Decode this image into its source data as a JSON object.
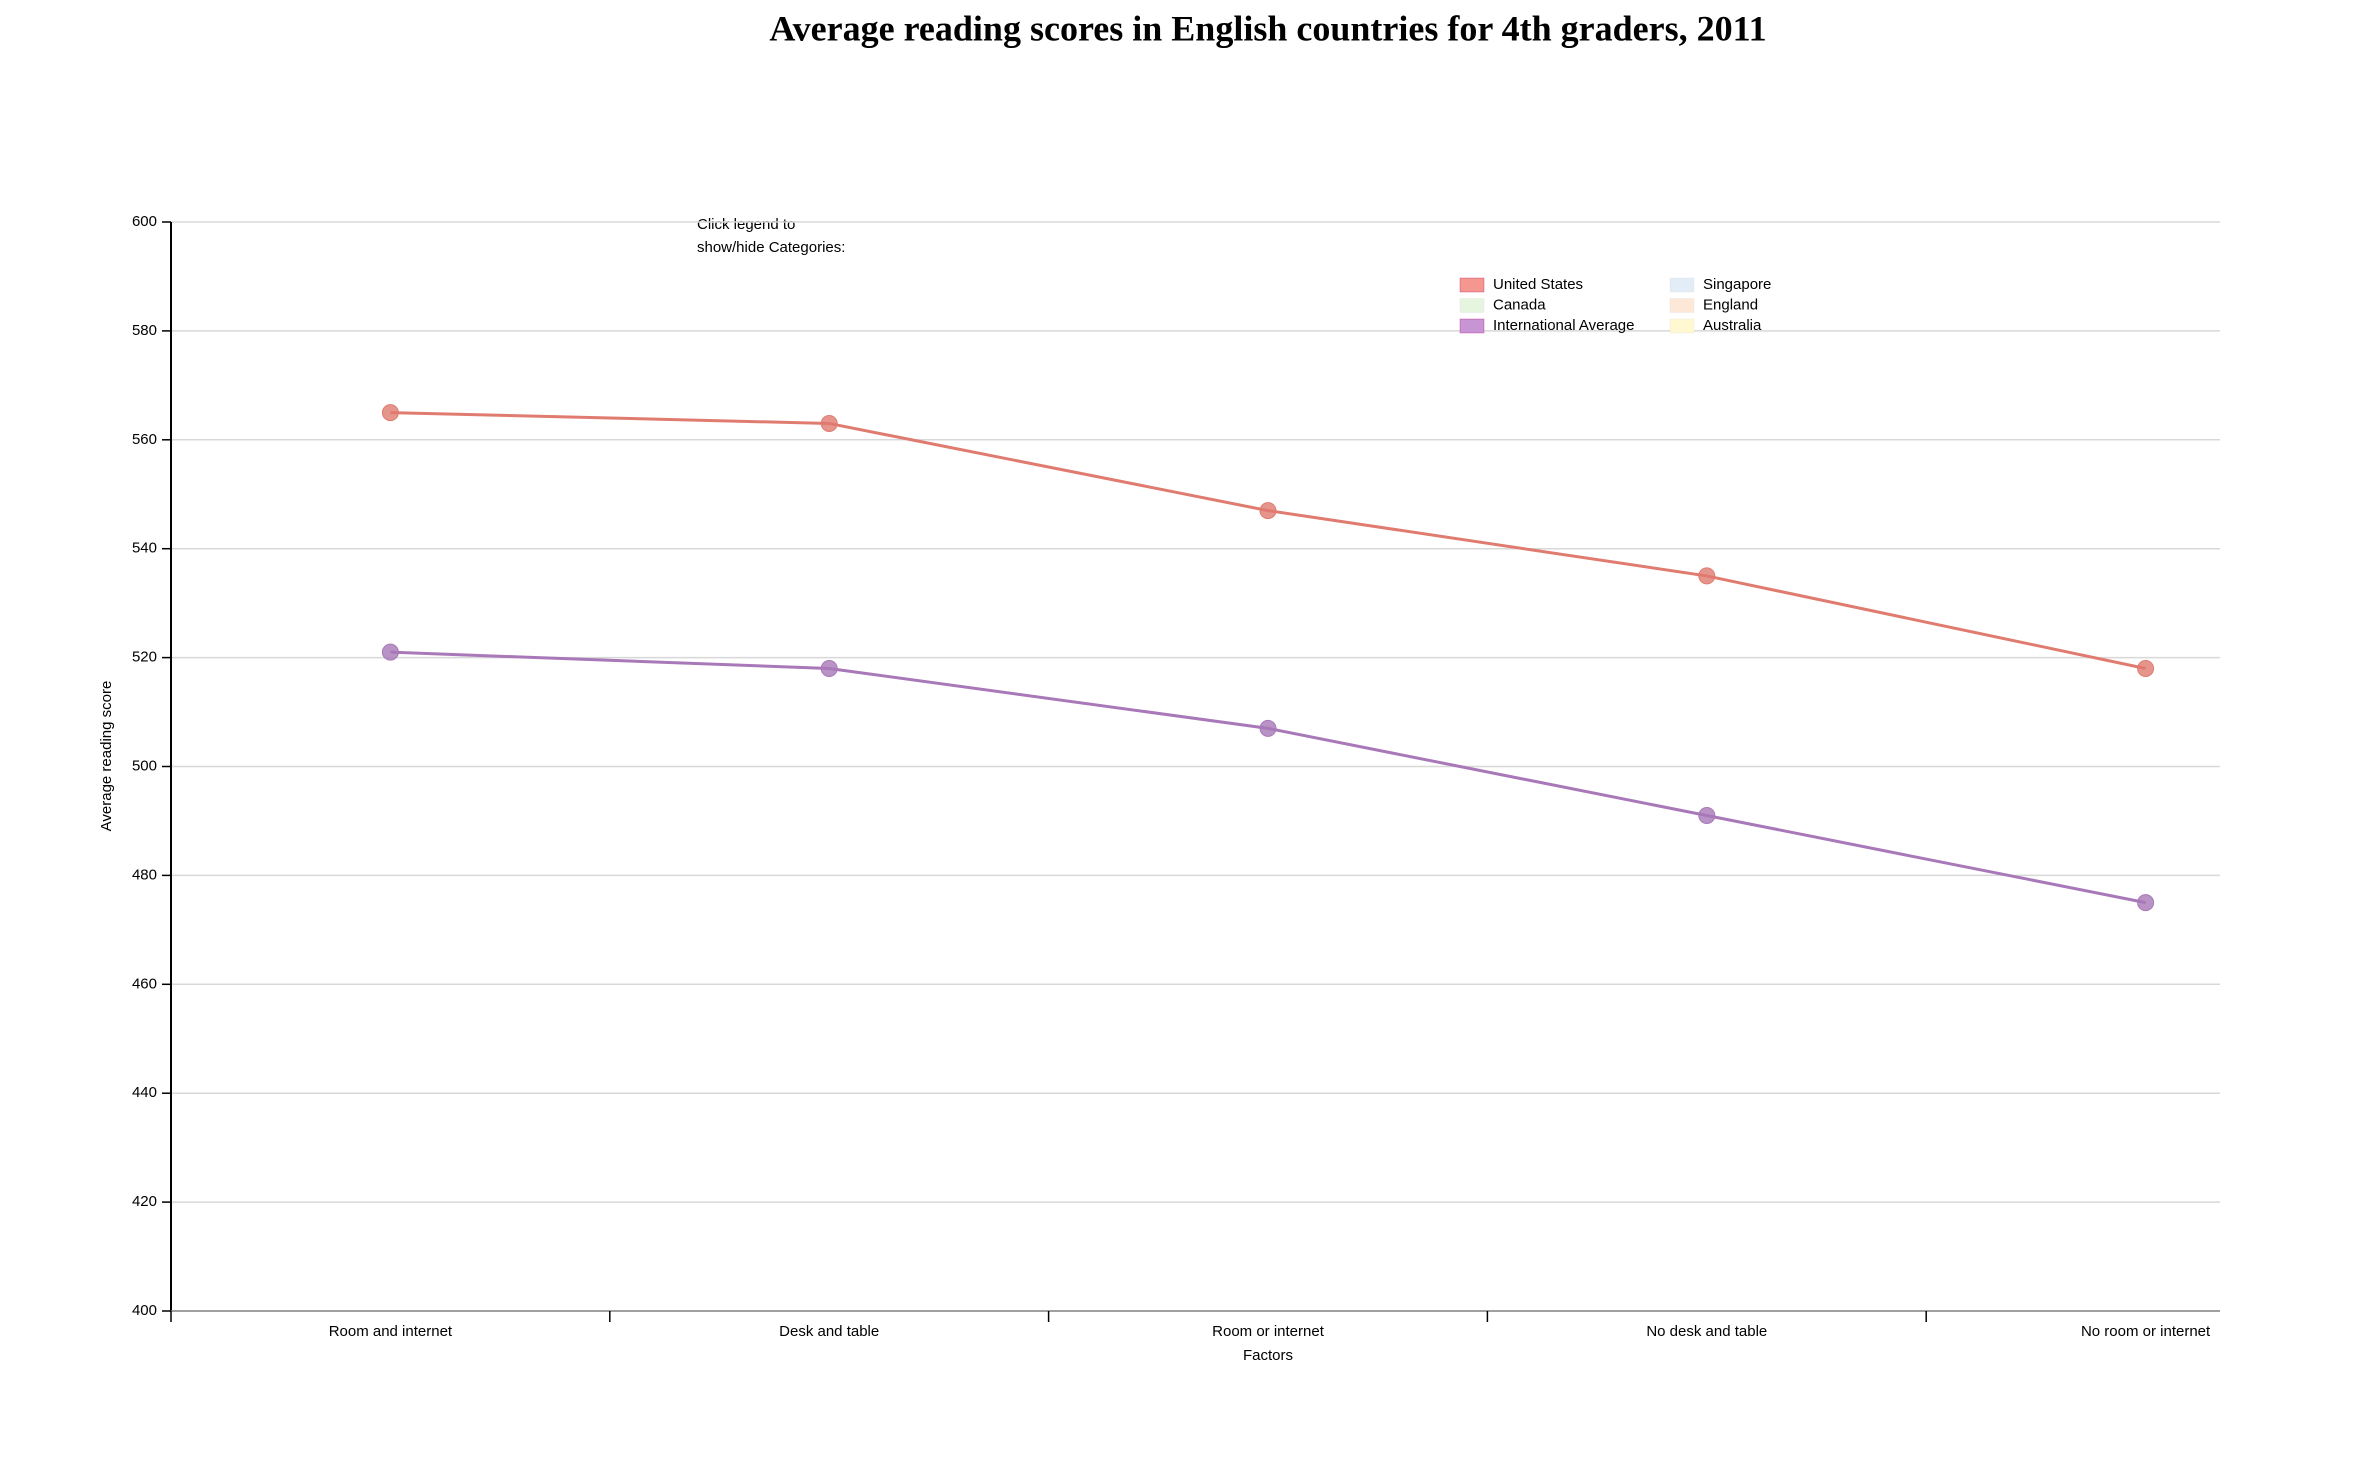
{
  "chart_data": {
    "type": "line",
    "title": "Average reading scores in English countries for 4th graders, 2011",
    "x_label": "Factors",
    "y_label": "Average reading score",
    "legend_note": [
      "Click legend to",
      "show/hide Categories:"
    ],
    "categories": [
      "Room and internet",
      "Desk and table",
      "Room or internet",
      "No desk and table",
      "No room or internet"
    ],
    "series": [
      {
        "name": "United States",
        "color": "#e07b70",
        "values": [
          565,
          563,
          547,
          535,
          518
        ]
      },
      {
        "name": "International Average",
        "color": "#a878b8",
        "values": [
          521,
          518,
          507,
          491,
          475
        ]
      }
    ],
    "legend": [
      {
        "name": "United States",
        "color": "#f4978e"
      },
      {
        "name": "Singapore",
        "color": "#e3edf8"
      },
      {
        "name": "Canada",
        "color": "#e6f5e0"
      },
      {
        "name": "England",
        "color": "#fde8d8"
      },
      {
        "name": "International Average",
        "color": "#c795d4"
      },
      {
        "name": "Australia",
        "color": "#fff8d0"
      }
    ],
    "ylim": [
      400,
      600
    ],
    "yticks": [
      400,
      420,
      440,
      460,
      480,
      500,
      520,
      540,
      560,
      580,
      600
    ],
    "grid": true
  }
}
